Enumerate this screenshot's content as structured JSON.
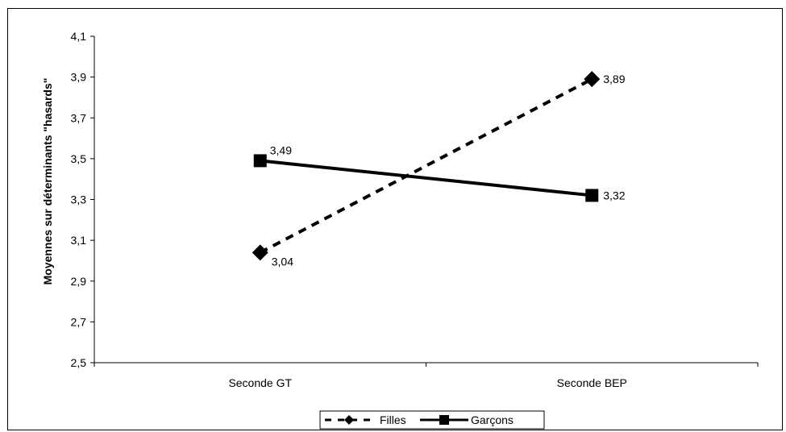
{
  "chart_data": {
    "type": "line",
    "categories": [
      "Seconde GT",
      "Seconde BEP"
    ],
    "series": [
      {
        "name": "Filles",
        "values": [
          3.04,
          3.89
        ],
        "labels": [
          "3,04",
          "3,89"
        ],
        "line_style": "dashed",
        "marker": "diamond",
        "color": "#000000"
      },
      {
        "name": "Garçons",
        "values": [
          3.49,
          3.32
        ],
        "labels": [
          "3,49",
          "3,32"
        ],
        "line_style": "solid",
        "marker": "square",
        "color": "#000000"
      }
    ],
    "title": "",
    "xlabel": "",
    "ylabel": "Moyennes sur déterminants \"hasards\"",
    "ylim": [
      2.5,
      4.1
    ],
    "yticks": [
      2.5,
      2.7,
      2.9,
      3.1,
      3.3,
      3.5,
      3.7,
      3.9,
      4.1
    ],
    "ytick_labels": [
      "2,5",
      "2,7",
      "2,9",
      "3,1",
      "3,3",
      "3,5",
      "3,7",
      "3,9",
      "4,1"
    ],
    "grid": false,
    "legend_position": "bottom"
  }
}
